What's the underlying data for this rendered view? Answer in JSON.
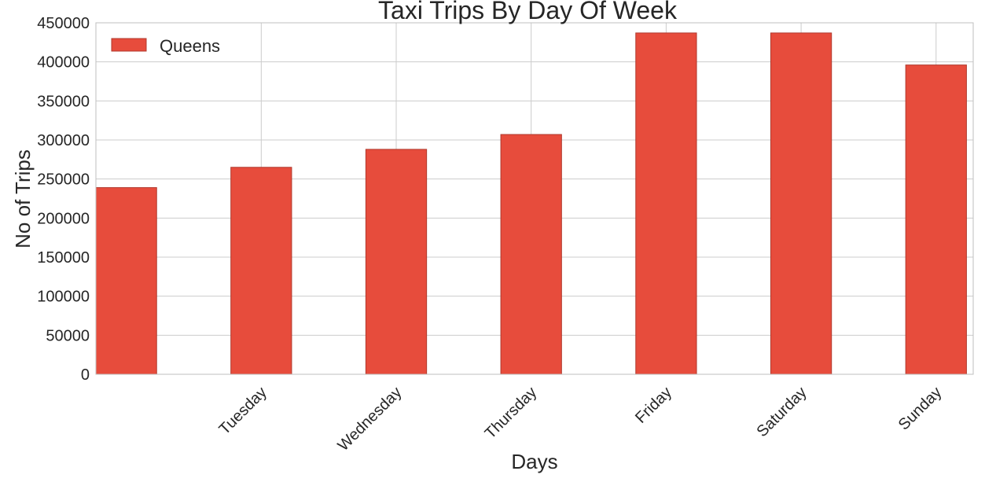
{
  "chart_data": {
    "type": "bar",
    "title": "Taxi Trips By Day Of Week",
    "xlabel": "Days",
    "ylabel": "No of Trips",
    "categories": [
      "",
      "Tuesday",
      "Wednesday",
      "Thursday",
      "Friday",
      "Saturday",
      "Sunday"
    ],
    "series": [
      {
        "name": "Queens",
        "values": [
          239000,
          265000,
          288000,
          307000,
          437000,
          437000,
          396000
        ]
      }
    ],
    "ylim": [
      0,
      450000
    ],
    "yticks": [
      0,
      50000,
      100000,
      150000,
      200000,
      250000,
      300000,
      350000,
      400000,
      450000
    ],
    "ytick_labels": [
      "0",
      "50000",
      "100000",
      "150000",
      "200000",
      "250000",
      "300000",
      "350000",
      "400000",
      "450000"
    ],
    "grid": true,
    "legend": "top-left",
    "colors": {
      "bar": "#e74c3c",
      "bar_edge": "#b0392d",
      "grid": "#cccccc",
      "background": "#ffffff"
    }
  }
}
